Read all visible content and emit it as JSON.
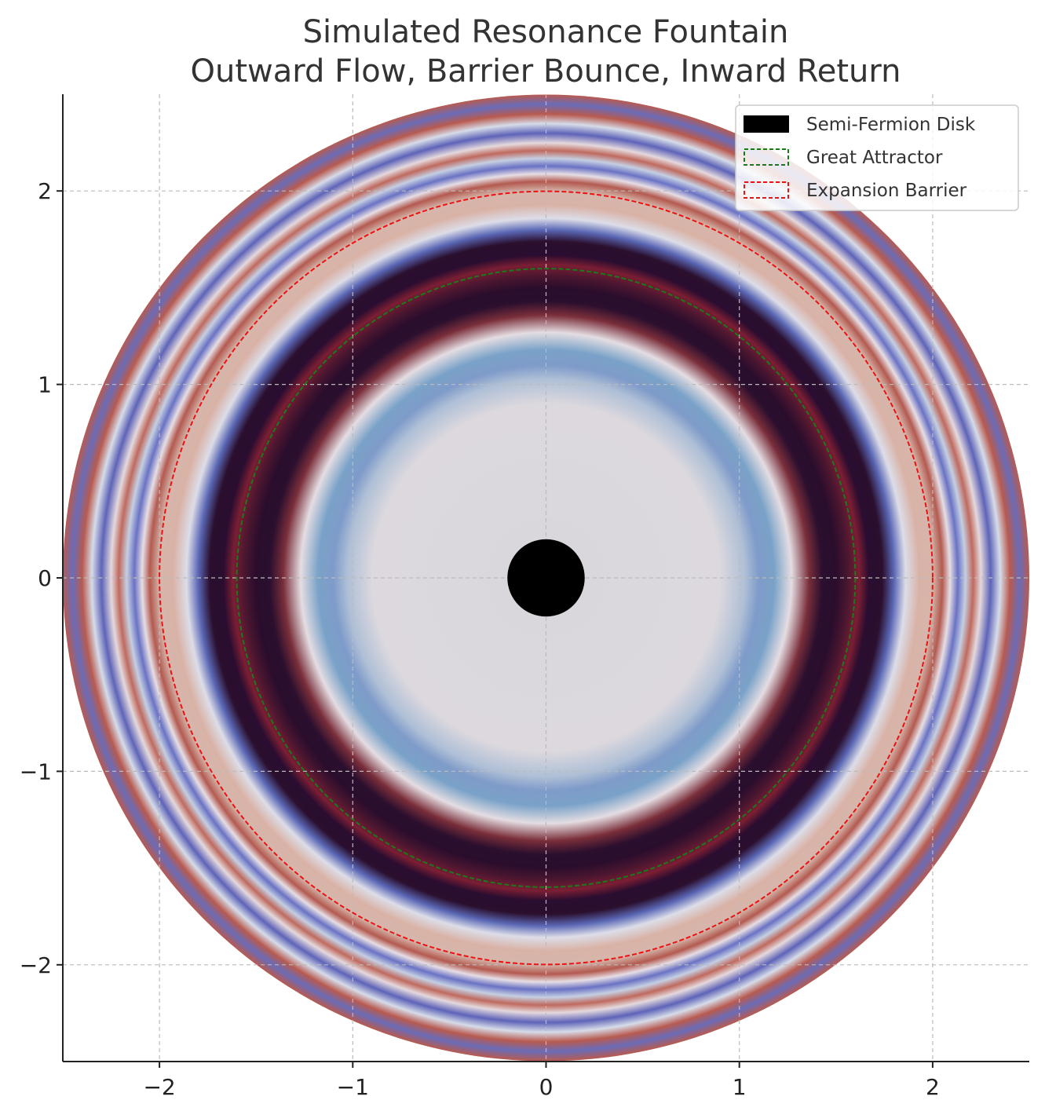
{
  "chart_data": {
    "type": "heatmap",
    "title": "Simulated Resonance Fountain",
    "subtitle": "Outward Flow, Barrier Bounce, Inward Return",
    "xlabel": "",
    "ylabel": "",
    "xlim": [
      -2.5,
      2.5
    ],
    "ylim": [
      -2.5,
      2.5
    ],
    "xticks": [
      -2,
      -1,
      0,
      1,
      2
    ],
    "yticks": [
      -2,
      -1,
      0,
      1,
      2
    ],
    "xtick_labels": [
      "−2",
      "−1",
      "0",
      "1",
      "2"
    ],
    "ytick_labels": [
      "2",
      "1",
      "0",
      "−1",
      "−2"
    ],
    "grid": true,
    "legend_position": "top-right",
    "field": {
      "description_radius_max": 2.5,
      "rings": [
        {
          "r": 0.0,
          "color": "#d8d6dc"
        },
        {
          "r": 0.9,
          "color": "#dcd8de"
        },
        {
          "r": 1.03,
          "color": "#aebfd6"
        },
        {
          "r": 1.1,
          "color": "#7f9bc9"
        },
        {
          "r": 1.18,
          "color": "#7aa2c8"
        },
        {
          "r": 1.27,
          "color": "#e4dde2"
        },
        {
          "r": 1.36,
          "color": "#7a2e3a"
        },
        {
          "r": 1.43,
          "color": "#2b0f2e"
        },
        {
          "r": 1.5,
          "color": "#2a0d2c"
        },
        {
          "r": 1.56,
          "color": "#4a1630"
        },
        {
          "r": 1.62,
          "color": "#7b1e33"
        },
        {
          "r": 1.67,
          "color": "#2a0d30"
        },
        {
          "r": 1.74,
          "color": "#2b0f2e"
        },
        {
          "r": 1.8,
          "color": "#5a67b5"
        },
        {
          "r": 1.86,
          "color": "#dcdde8"
        },
        {
          "r": 1.93,
          "color": "#d9b2a6"
        },
        {
          "r": 2.0,
          "color": "#d6b6ab"
        },
        {
          "r": 2.05,
          "color": "#b35a50"
        },
        {
          "r": 2.09,
          "color": "#e6dee4"
        },
        {
          "r": 2.13,
          "color": "#6a72c4"
        },
        {
          "r": 2.17,
          "color": "#c5cfe2"
        },
        {
          "r": 2.21,
          "color": "#bf6a5e"
        },
        {
          "r": 2.25,
          "color": "#e4d9dd"
        },
        {
          "r": 2.3,
          "color": "#5e63b8"
        },
        {
          "r": 2.35,
          "color": "#d6dce8"
        },
        {
          "r": 2.4,
          "color": "#b85a4f"
        },
        {
          "r": 2.45,
          "color": "#6a6cb8"
        },
        {
          "r": 2.5,
          "color": "#b85a4f"
        }
      ]
    },
    "series": [
      {
        "name": "Semi-Fermion Disk",
        "kind": "filled_circle",
        "cx": 0,
        "cy": 0,
        "r": 0.2,
        "color": "#000000"
      },
      {
        "name": "Great Attractor",
        "kind": "dashed_circle",
        "cx": 0,
        "cy": 0,
        "r": 1.6,
        "color": "#1a7a1a"
      },
      {
        "name": "Expansion Barrier",
        "kind": "dashed_circle",
        "cx": 0,
        "cy": 0,
        "r": 2.0,
        "color": "#ee1111"
      }
    ]
  }
}
